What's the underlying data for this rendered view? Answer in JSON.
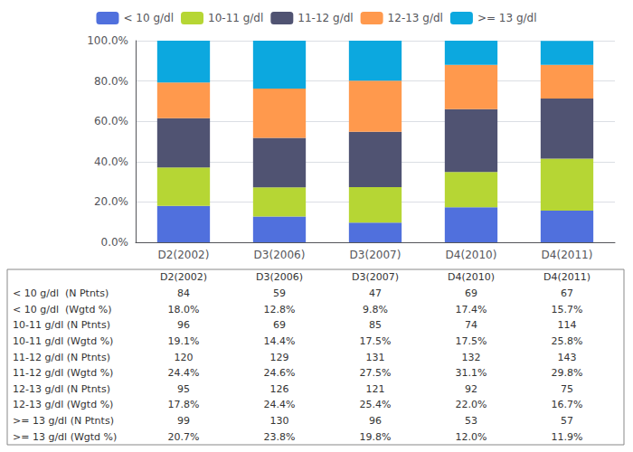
{
  "chart_data": {
    "type": "bar",
    "stacked": true,
    "categories": [
      "D2(2002)",
      "D3(2006)",
      "D3(2007)",
      "D4(2010)",
      "D4(2011)"
    ],
    "series": [
      {
        "name": "< 10 g/dl",
        "values": [
          18.0,
          12.8,
          9.8,
          17.4,
          15.7
        ]
      },
      {
        "name": "10-11 g/dl",
        "values": [
          19.1,
          14.4,
          17.5,
          17.5,
          25.8
        ]
      },
      {
        "name": "11-12 g/dl",
        "values": [
          24.4,
          24.6,
          27.5,
          31.1,
          29.8
        ]
      },
      {
        "name": "12-13 g/dl",
        "values": [
          17.8,
          24.4,
          25.4,
          22.0,
          16.7
        ]
      },
      {
        "name": ">= 13 g/dl",
        "values": [
          20.7,
          23.8,
          19.8,
          12.0,
          11.9
        ]
      }
    ],
    "ylim": [
      0,
      100
    ],
    "yticks": [
      {
        "value": 0,
        "label": "0.0%"
      },
      {
        "value": 20,
        "label": "20.0%"
      },
      {
        "value": 40,
        "label": "40.0%"
      },
      {
        "value": 60,
        "label": "60.0%"
      },
      {
        "value": 80,
        "label": "80.0%"
      },
      {
        "value": 100,
        "label": "100.0%"
      }
    ],
    "grid": true,
    "legend": "top",
    "table_rows": [
      {
        "label": "< 10 g/dl  (N Ptnts)",
        "values": [
          "84",
          "59",
          "47",
          "69",
          "67"
        ]
      },
      {
        "label": "< 10 g/dl  (Wgtd %)",
        "values": [
          "18.0%",
          "12.8%",
          "9.8%",
          "17.4%",
          "15.7%"
        ]
      },
      {
        "label": "10-11 g/dl (N Ptnts)",
        "values": [
          "96",
          "69",
          "85",
          "74",
          "114"
        ]
      },
      {
        "label": "10-11 g/dl (Wgtd %)",
        "values": [
          "19.1%",
          "14.4%",
          "17.5%",
          "17.5%",
          "25.8%"
        ]
      },
      {
        "label": "11-12 g/dl (N Ptnts)",
        "values": [
          "120",
          "129",
          "131",
          "132",
          "143"
        ]
      },
      {
        "label": "11-12 g/dl (Wgtd %)",
        "values": [
          "24.4%",
          "24.6%",
          "27.5%",
          "31.1%",
          "29.8%"
        ]
      },
      {
        "label": "12-13 g/dl (N Ptnts)",
        "values": [
          "95",
          "126",
          "121",
          "92",
          "75"
        ]
      },
      {
        "label": "12-13 g/dl (Wgtd %)",
        "values": [
          "17.8%",
          "24.4%",
          "25.4%",
          "22.0%",
          "16.7%"
        ]
      },
      {
        "label": ">= 13 g/dl (N Ptnts)",
        "values": [
          "99",
          "130",
          "96",
          "53",
          "57"
        ]
      },
      {
        "label": ">= 13 g/dl (Wgtd %)",
        "values": [
          "20.7%",
          "23.8%",
          "19.8%",
          "12.0%",
          "11.9%"
        ]
      }
    ]
  }
}
